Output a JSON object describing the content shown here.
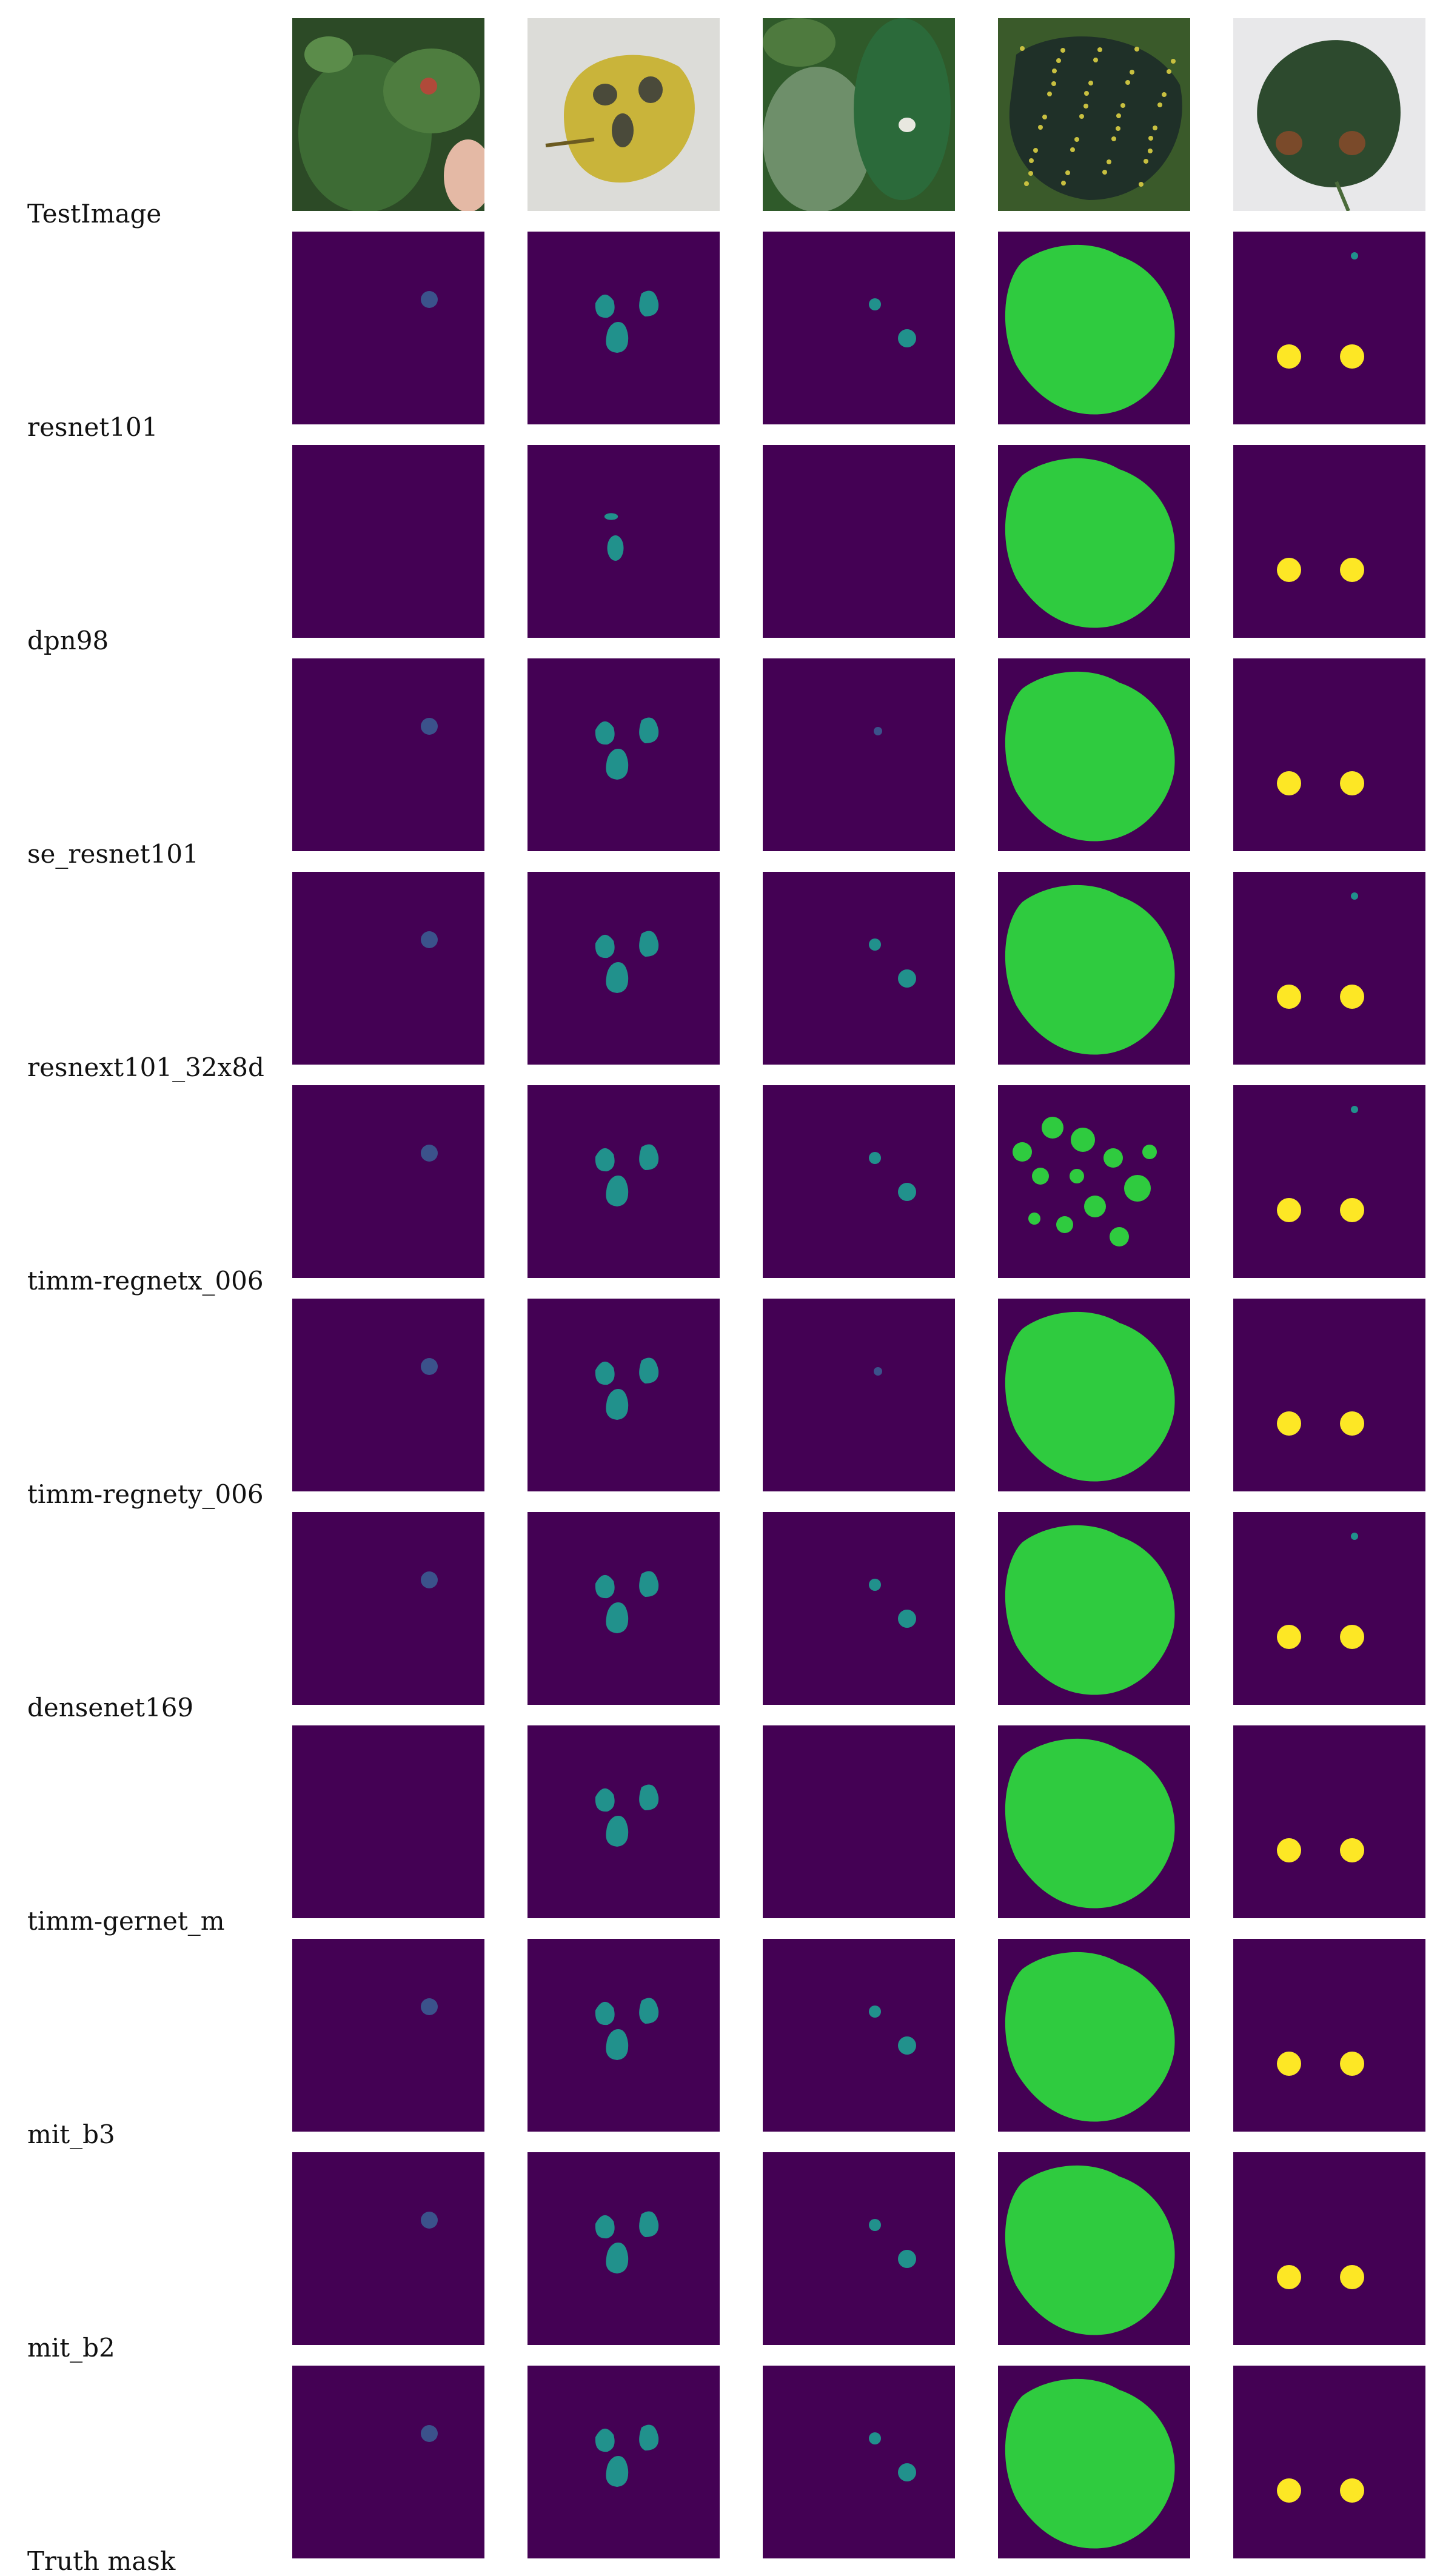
{
  "rows": [
    {
      "label": "TestImage",
      "kind": "photo"
    },
    {
      "label": "resnet101",
      "kind": "mask"
    },
    {
      "label": "dpn98",
      "kind": "mask"
    },
    {
      "label": "se_resnet101",
      "kind": "mask"
    },
    {
      "label": "resnext101_32x8d",
      "kind": "mask"
    },
    {
      "label": "timm-regnetx_006",
      "kind": "mask"
    },
    {
      "label": "timm-regnety_006",
      "kind": "mask"
    },
    {
      "label": "densenet169",
      "kind": "mask"
    },
    {
      "label": "timm-gernet_m",
      "kind": "mask"
    },
    {
      "label": "mit_b3",
      "kind": "mask"
    },
    {
      "label": "mit_b2",
      "kind": "mask"
    },
    {
      "label": "Truth mask",
      "kind": "mask"
    }
  ],
  "columns": 5,
  "colors": {
    "background_class": "#440154",
    "class_1": "#3b528b",
    "class_2": "#21918c",
    "class_3": "#2fcb3f",
    "class_4": "#fde725",
    "page": "#ffffff"
  },
  "photo_icons": [
    "leaf-spot-photo",
    "yellow-leaf-photo",
    "green-leaves-photo",
    "dotted-leaf-photo",
    "dark-leaf-photo"
  ]
}
